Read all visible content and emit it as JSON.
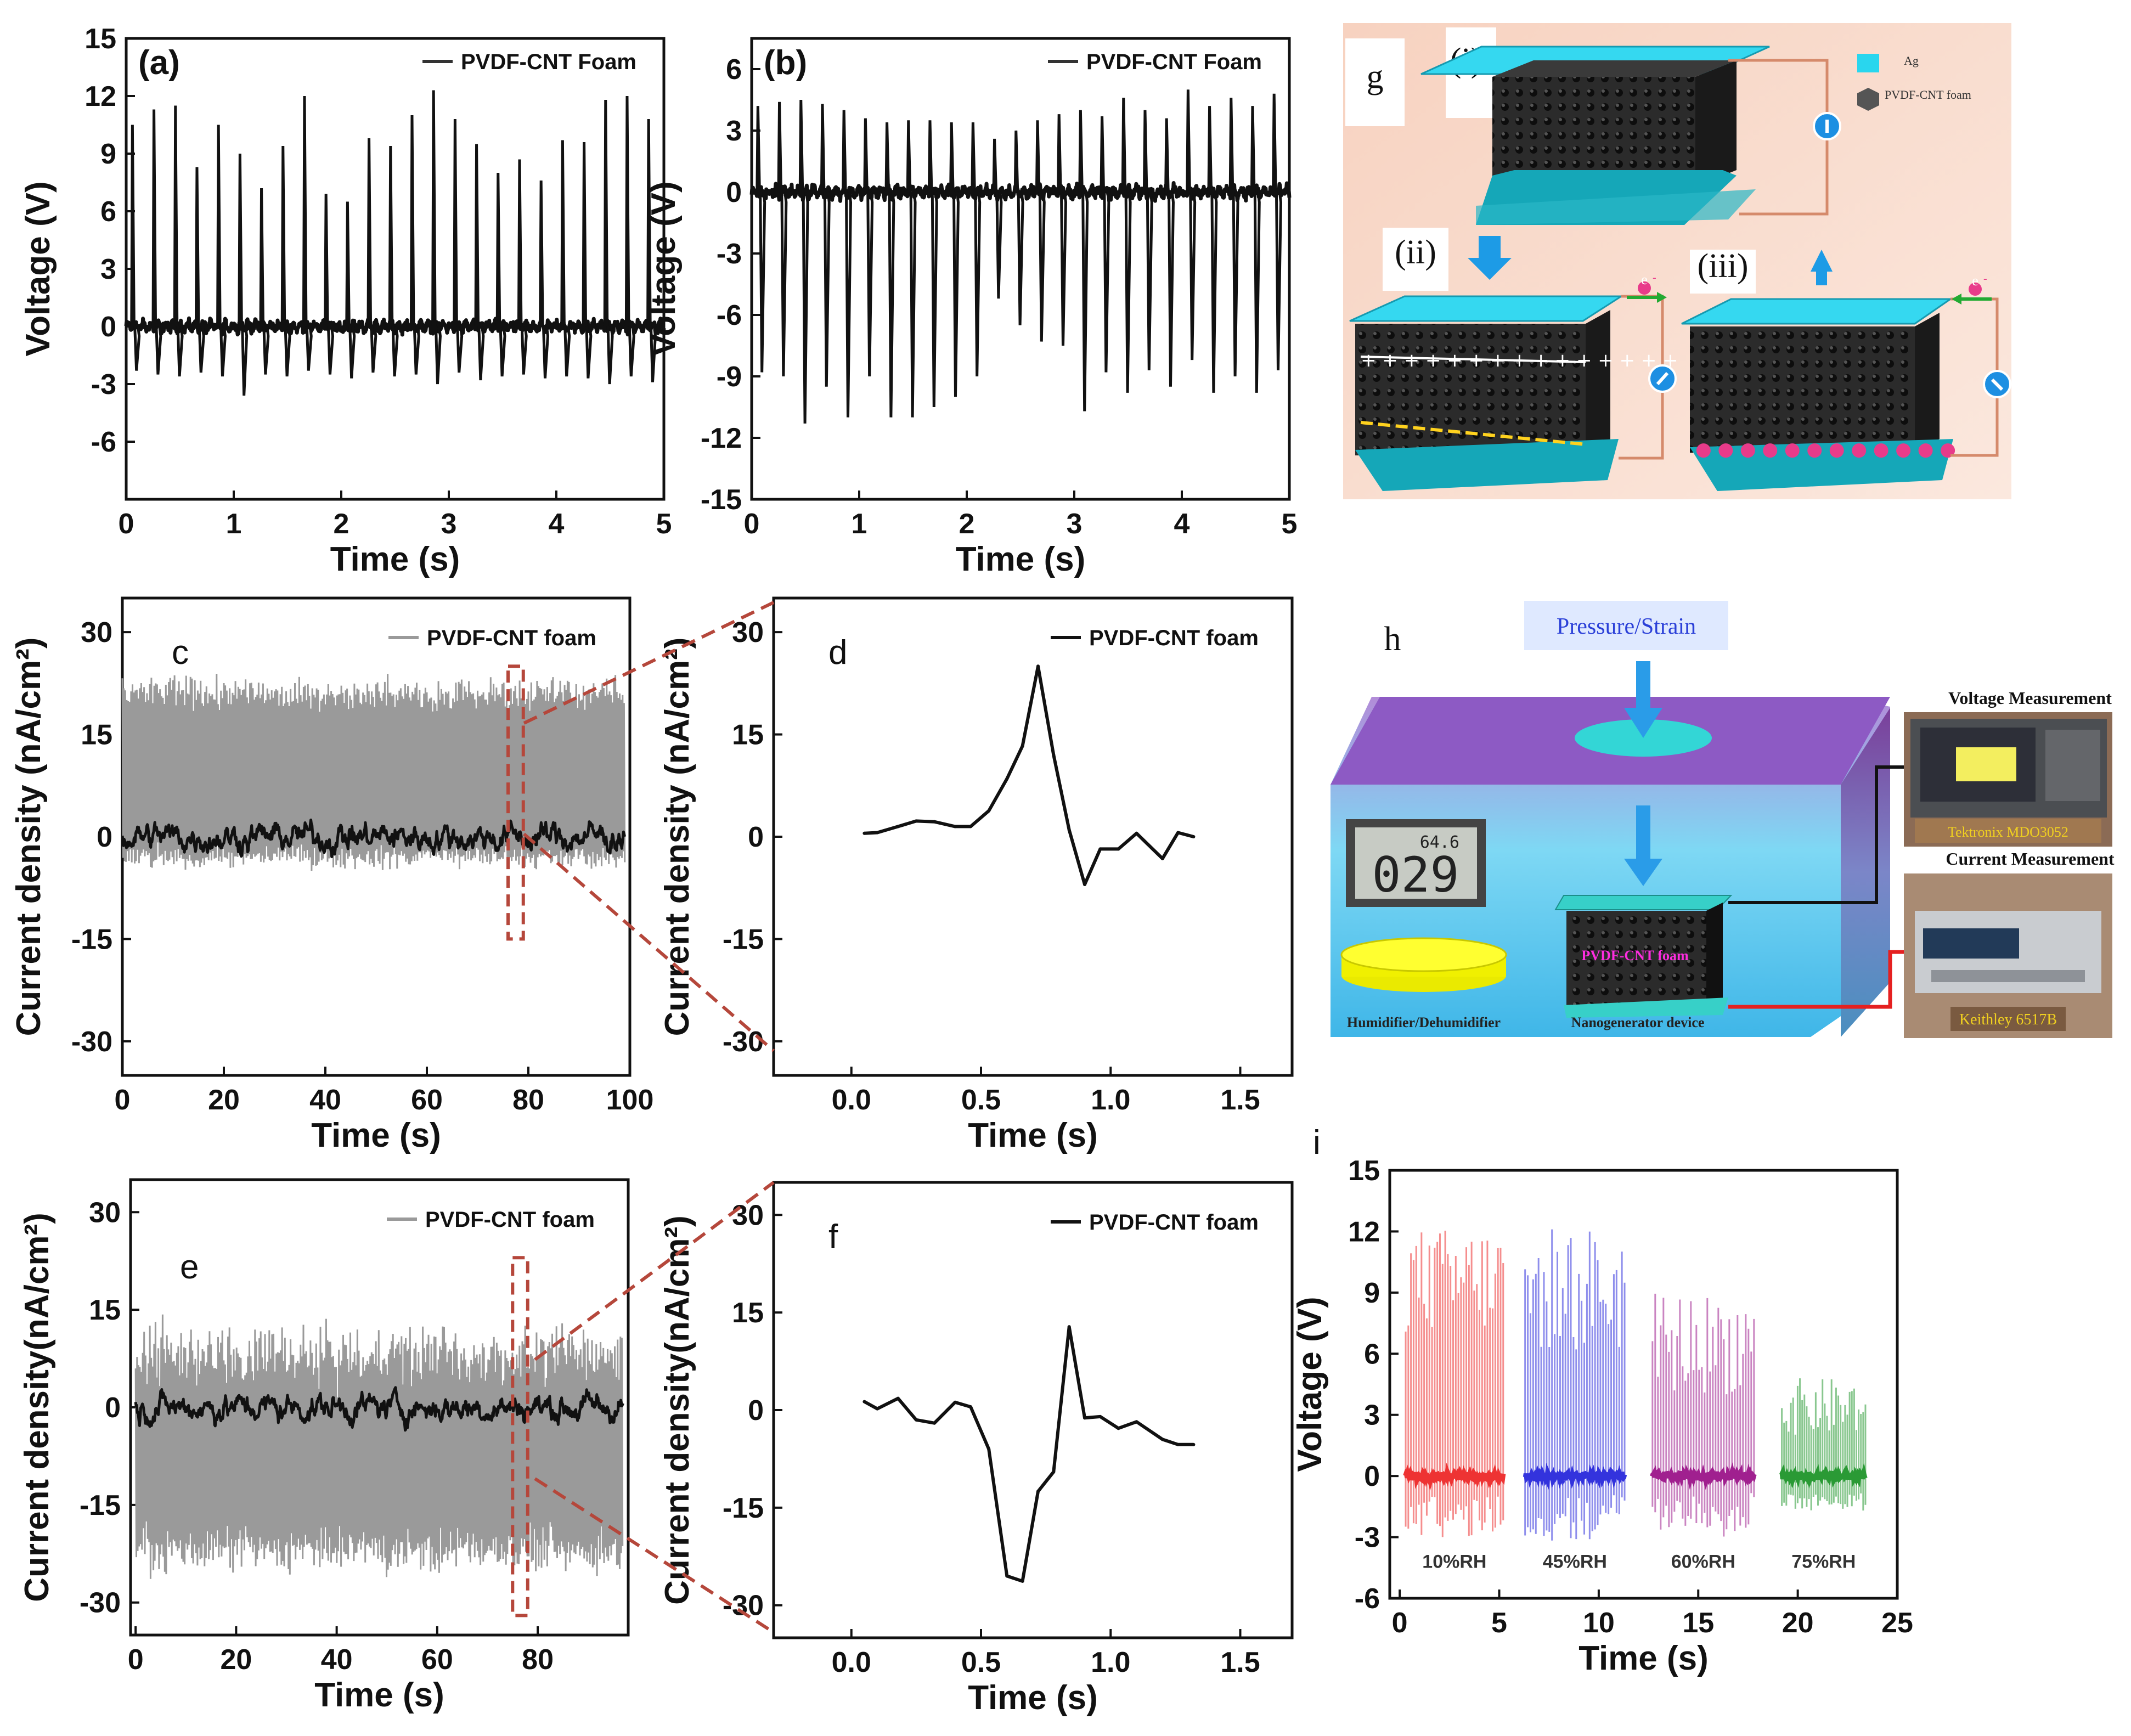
{
  "chart_data": [
    {
      "id": "a",
      "type": "line",
      "panel_label": "(a)",
      "legend": "PVDF-CNT Foam",
      "xlabel": "Time (s)",
      "ylabel": "Voltage (V)",
      "xlim": [
        0,
        5
      ],
      "ylim": [
        -9,
        15
      ],
      "xticks": [
        0,
        1,
        2,
        3,
        4,
        5
      ],
      "yticks": [
        -6,
        -3,
        0,
        3,
        6,
        9,
        12,
        15
      ],
      "series": [
        {
          "name": "PVDF-CNT Foam",
          "color": "#111111",
          "peak_times": [
            0.05,
            0.25,
            0.45,
            0.65,
            0.85,
            1.05,
            1.25,
            1.45,
            1.65,
            1.85,
            2.05,
            2.25,
            2.45,
            2.65,
            2.85,
            3.05,
            3.25,
            3.45,
            3.65,
            3.85,
            4.05,
            4.25,
            4.45,
            4.65,
            4.85
          ],
          "peak_values": [
            10.5,
            11.3,
            11.5,
            8.3,
            10.5,
            9.0,
            7.2,
            9.4,
            12.0,
            6.9,
            6.5,
            9.8,
            9.4,
            11.0,
            12.3,
            10.8,
            9.5,
            8.0,
            8.7,
            7.6,
            9.7,
            9.6,
            11.8,
            12.0,
            10.8
          ],
          "trough_values": [
            -2.3,
            -2.5,
            -2.6,
            -2.4,
            -2.6,
            -3.6,
            -2.5,
            -2.6,
            -2.3,
            -2.5,
            -2.7,
            -2.4,
            -2.6,
            -2.5,
            -3.0,
            -2.4,
            -2.8,
            -2.6,
            -2.5,
            -2.7,
            -2.6,
            -2.7,
            -3.0,
            -2.6,
            -2.9
          ]
        }
      ]
    },
    {
      "id": "b",
      "type": "line",
      "panel_label": "(b)",
      "legend": "PVDF-CNT Foam",
      "xlabel": "Time (s)",
      "ylabel": "Voltage (V)",
      "xlim": [
        0,
        5
      ],
      "ylim": [
        -15,
        7.5
      ],
      "xticks": [
        0,
        1,
        2,
        3,
        4,
        5
      ],
      "yticks": [
        -15,
        -12,
        -9,
        -6,
        -3,
        0,
        3,
        6
      ],
      "series": [
        {
          "name": "PVDF-CNT Foam",
          "color": "#111111",
          "peak_times": [
            0.05,
            0.25,
            0.45,
            0.65,
            0.85,
            1.05,
            1.25,
            1.45,
            1.65,
            1.85,
            2.05,
            2.25,
            2.45,
            2.65,
            2.85,
            3.05,
            3.25,
            3.45,
            3.65,
            3.85,
            4.05,
            4.25,
            4.45,
            4.65,
            4.85
          ],
          "peak_values": [
            4.2,
            4.4,
            4.5,
            4.3,
            4.0,
            3.6,
            3.4,
            3.5,
            3.5,
            3.4,
            3.4,
            2.6,
            3.0,
            3.5,
            3.8,
            4.0,
            3.7,
            4.6,
            4.0,
            3.6,
            5.0,
            4.2,
            4.6,
            4.2,
            4.8
          ],
          "trough_values": [
            -8.8,
            -9.0,
            -11.3,
            -9.5,
            -11.0,
            -9.0,
            -11.0,
            -11.0,
            -10.5,
            -10.0,
            -9.0,
            -5.2,
            -6.5,
            -7.3,
            -7.5,
            -10.7,
            -8.8,
            -9.8,
            -8.7,
            -9.5,
            -8.2,
            -9.8,
            -9.0,
            -9.8,
            -8.7
          ]
        }
      ]
    },
    {
      "id": "c",
      "type": "line",
      "panel_label": "c",
      "legend": "PVDF-CNT foam",
      "xlabel": "Time (s)",
      "ylabel": "Current density (nA/cm²)",
      "xlim": [
        0,
        100
      ],
      "ylim": [
        -35,
        35
      ],
      "xticks": [
        0,
        20,
        40,
        60,
        80,
        100
      ],
      "yticks": [
        -30,
        -15,
        0,
        15,
        30
      ],
      "highlight_x": [
        76,
        79
      ],
      "series": [
        {
          "name": "envelope",
          "color": "#9a9a9a",
          "upper_approx": 21,
          "lower_approx": -3
        },
        {
          "name": "PVDF-CNT foam",
          "color": "#111111",
          "baseline": 0
        }
      ]
    },
    {
      "id": "d",
      "type": "line",
      "panel_label": "d",
      "legend": "PVDF-CNT foam",
      "xlabel": "Time (s)",
      "ylabel": "Current density (nA/cm²)",
      "xlim": [
        -0.3,
        1.7
      ],
      "ylim": [
        -35,
        35
      ],
      "xticks": [
        0.0,
        0.5,
        1.0,
        1.5
      ],
      "yticks": [
        -30,
        -15,
        0,
        15,
        30
      ],
      "series": [
        {
          "name": "PVDF-CNT foam",
          "color": "#111111",
          "x": [
            0.05,
            0.1,
            0.18,
            0.25,
            0.32,
            0.4,
            0.46,
            0.53,
            0.6,
            0.66,
            0.72,
            0.78,
            0.84,
            0.9,
            0.96,
            1.03,
            1.1,
            1.2,
            1.26,
            1.32
          ],
          "y": [
            0.5,
            0.6,
            1.5,
            2.3,
            2.2,
            1.5,
            1.5,
            3.8,
            8.5,
            13.3,
            25.0,
            12.0,
            1.0,
            -7.0,
            -1.8,
            -1.8,
            0.5,
            -3.2,
            0.6,
            0.0
          ]
        }
      ]
    },
    {
      "id": "e",
      "type": "line",
      "panel_label": "e",
      "legend": "PVDF-CNT foam",
      "xlabel": "Time (s)",
      "ylabel": "Current density(nA/cm²)",
      "xlim": [
        -1,
        98
      ],
      "ylim": [
        -35,
        35
      ],
      "xticks": [
        0,
        20,
        40,
        60,
        80
      ],
      "yticks": [
        -30,
        -15,
        0,
        15,
        30
      ],
      "highlight_x": [
        75,
        78
      ],
      "series": [
        {
          "name": "envelope",
          "color": "#9a9a9a",
          "upper_approx": 8,
          "lower_approx": -22
        },
        {
          "name": "PVDF-CNT foam",
          "color": "#111111",
          "baseline": 0
        }
      ]
    },
    {
      "id": "f",
      "type": "line",
      "panel_label": "f",
      "legend": "PVDF-CNT foam",
      "xlabel": "Time (s)",
      "ylabel": "Current density(nA/cm²)",
      "xlim": [
        -0.3,
        1.7
      ],
      "ylim": [
        -35,
        35
      ],
      "xticks": [
        0.0,
        0.5,
        1.0,
        1.5
      ],
      "yticks": [
        -30,
        -15,
        0,
        15,
        30
      ],
      "series": [
        {
          "name": "PVDF-CNT foam",
          "color": "#111111",
          "x": [
            0.05,
            0.1,
            0.18,
            0.25,
            0.32,
            0.4,
            0.46,
            0.53,
            0.6,
            0.66,
            0.72,
            0.78,
            0.84,
            0.9,
            0.96,
            1.03,
            1.1,
            1.2,
            1.26,
            1.32
          ],
          "y": [
            1.3,
            0.2,
            1.8,
            -1.5,
            -2.0,
            1.2,
            0.5,
            -6.0,
            -25.5,
            -26.3,
            -12.5,
            -9.5,
            12.8,
            -1.2,
            -1.0,
            -2.8,
            -1.8,
            -4.5,
            -5.3,
            -5.3
          ]
        }
      ]
    },
    {
      "id": "i",
      "type": "line",
      "panel_label": "i",
      "xlabel": "Time (s)",
      "ylabel": "Voltage (V)",
      "xlim": [
        -0.5,
        25
      ],
      "ylim": [
        -6,
        15
      ],
      "xticks": [
        0,
        5,
        10,
        15,
        20,
        25
      ],
      "yticks": [
        -6,
        -3,
        0,
        3,
        6,
        9,
        12,
        15
      ],
      "series": [
        {
          "name": "10%RH",
          "color": "#ee3333",
          "x_range": [
            0.3,
            5.2
          ],
          "peak_range": [
            7,
            12.2
          ],
          "trough_min": -3.2
        },
        {
          "name": "45%RH",
          "color": "#3333dd",
          "x_range": [
            6.3,
            11.3
          ],
          "peak_range": [
            6,
            12.3
          ],
          "trough_min": -3.2
        },
        {
          "name": "60%RH",
          "color": "#a0208f",
          "x_range": [
            12.7,
            17.8
          ],
          "peak_range": [
            4,
            9.0
          ],
          "trough_min": -3.0
        },
        {
          "name": "75%RH",
          "color": "#2a9a35",
          "x_range": [
            19.2,
            23.4
          ],
          "peak_range": [
            2,
            4.8
          ],
          "trough_min": -1.7
        }
      ]
    }
  ],
  "schematic_g": {
    "panel_label": "g",
    "stage_labels": [
      "(i)",
      "(ii)",
      "(iii)"
    ],
    "legend": [
      {
        "label": "Ag",
        "color": "#29d6ee"
      },
      {
        "label": "PVDF-CNT foam",
        "color": "#555555"
      }
    ],
    "electron_symbol": "e",
    "electron_superscript": "-"
  },
  "schematic_h": {
    "panel_label": "h",
    "pressure_label": "Pressure/Strain",
    "display_top": "64.6",
    "display_main": "029",
    "foam_label": "PVDF-CNT foam",
    "humidifier_label": "Humidifier/Dehumidifier",
    "device_label": "Nanogenerator device",
    "voltage_title": "Voltage Measurement",
    "voltage_device": "Tektronix MDO3052",
    "current_title": "Current Measurement",
    "current_device": "Keithley 6517B"
  }
}
